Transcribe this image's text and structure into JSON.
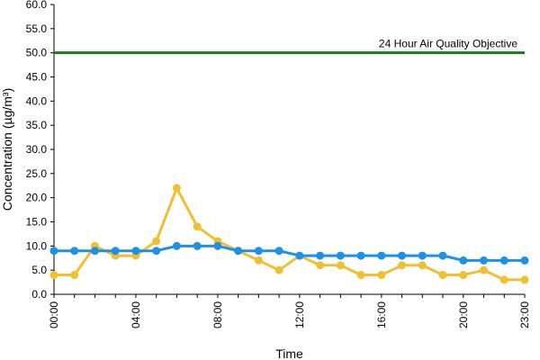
{
  "chart_data": {
    "type": "line",
    "xlabel": "Time",
    "ylabel": "Concentration (µg/m³)",
    "x": [
      "00:00",
      "01:00",
      "02:00",
      "03:00",
      "04:00",
      "05:00",
      "06:00",
      "07:00",
      "08:00",
      "09:00",
      "10:00",
      "11:00",
      "12:00",
      "13:00",
      "14:00",
      "15:00",
      "16:00",
      "17:00",
      "18:00",
      "19:00",
      "20:00",
      "21:00",
      "22:00",
      "23:00"
    ],
    "x_tick_labels": [
      "00:00",
      "04:00",
      "08:00",
      "12:00",
      "16:00",
      "20:00",
      "23:00"
    ],
    "ylim": [
      0,
      60
    ],
    "y_ticks": [
      "0.0",
      "5.0",
      "10.0",
      "15.0",
      "20.0",
      "25.0",
      "30.0",
      "35.0",
      "40.0",
      "45.0",
      "50.0",
      "55.0",
      "60.0"
    ],
    "grid": false,
    "series": [
      {
        "color": "#1e90e8",
        "values": [
          9,
          9,
          9,
          9,
          9,
          9,
          10,
          10,
          10,
          9,
          9,
          9,
          8,
          8,
          8,
          8,
          8,
          8,
          8,
          8,
          7,
          7,
          7,
          7
        ]
      },
      {
        "color": "#f0c030",
        "values": [
          4,
          4,
          10,
          8,
          8,
          11,
          22,
          14,
          11,
          9,
          7,
          5,
          8,
          6,
          6,
          4,
          4,
          6,
          6,
          4,
          4,
          5,
          3,
          3
        ]
      }
    ],
    "reference_line": {
      "value": 50,
      "label": "24 Hour Air Quality Objective",
      "color": "#1a7a1a"
    }
  }
}
